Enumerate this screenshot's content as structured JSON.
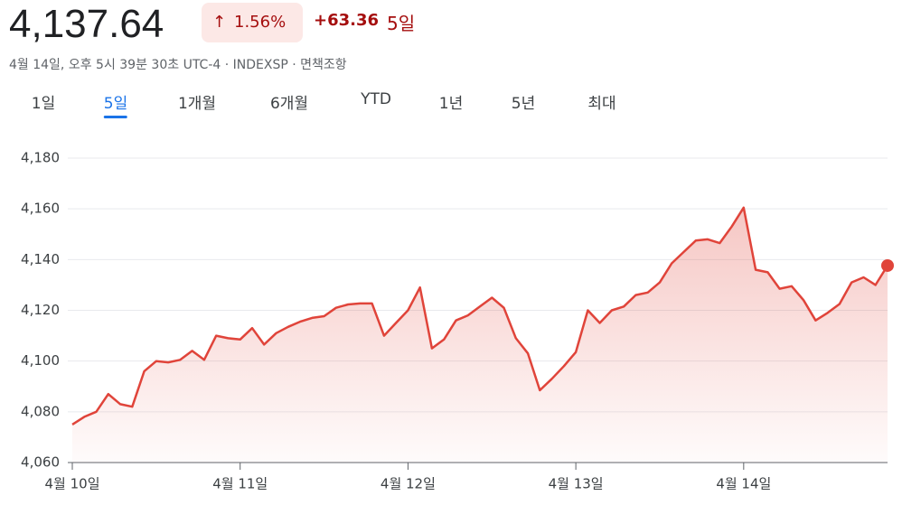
{
  "header": {
    "price": "4,137.64",
    "change_percent": "1.56%",
    "change": "+63.36",
    "period": "5일",
    "subtitle": "4월 14일, 오후 5시 39분 30초 UTC-4 · INDEXSP · 면책조항"
  },
  "tabs": {
    "items": [
      "1일",
      "5일",
      "1개월",
      "6개월",
      "YTD",
      "1년",
      "5년",
      "최대"
    ],
    "active": 1
  },
  "chart_data": {
    "type": "line",
    "color": "#e0443a",
    "grid": true,
    "ylim": [
      4060,
      4180
    ],
    "yticks": [
      {
        "value": 4060,
        "label": "4,060"
      },
      {
        "value": 4080,
        "label": "4,080"
      },
      {
        "value": 4100,
        "label": "4,100"
      },
      {
        "value": 4120,
        "label": "4,120"
      },
      {
        "value": 4140,
        "label": "4,140"
      },
      {
        "value": 4160,
        "label": "4,160"
      },
      {
        "value": 4180,
        "label": "4,180"
      }
    ],
    "categories": [
      "4월 10일",
      null,
      null,
      null,
      null,
      null,
      null,
      null,
      null,
      null,
      null,
      null,
      null,
      null,
      "4월 11일",
      null,
      null,
      null,
      null,
      null,
      null,
      null,
      null,
      null,
      null,
      null,
      null,
      null,
      "4월 12일",
      null,
      null,
      null,
      null,
      null,
      null,
      null,
      null,
      null,
      null,
      null,
      null,
      null,
      "4월 13일",
      null,
      null,
      null,
      null,
      null,
      null,
      null,
      null,
      null,
      null,
      null,
      null,
      null,
      "4월 14일",
      null,
      null,
      null,
      null,
      null,
      null,
      null,
      null,
      null,
      null,
      null,
      null
    ],
    "values": [
      4075,
      4078,
      4080,
      4087,
      4083,
      4082,
      4096,
      4100,
      4099.5,
      4100.5,
      4104,
      4100.5,
      4110,
      4109,
      4108.5,
      4113,
      4106.5,
      4111,
      4113.5,
      4115.5,
      4117,
      4117.7,
      4121,
      4122.3,
      4122.7,
      4122.7,
      4110,
      4115,
      4120,
      4129,
      4105,
      4108.5,
      4116,
      4118,
      4121.5,
      4125,
      4121,
      4109,
      4103,
      4088.5,
      4093,
      4098,
      4103.5,
      4120,
      4115,
      4120,
      4121.5,
      4126,
      4127,
      4131,
      4138.5,
      4143,
      4147.5,
      4148,
      4146.5,
      4153,
      4160.5,
      4136,
      4135,
      4128.5,
      4129.5,
      4124,
      4116,
      4119,
      4122.5,
      4131,
      4133,
      4130,
      4137.64
    ]
  }
}
